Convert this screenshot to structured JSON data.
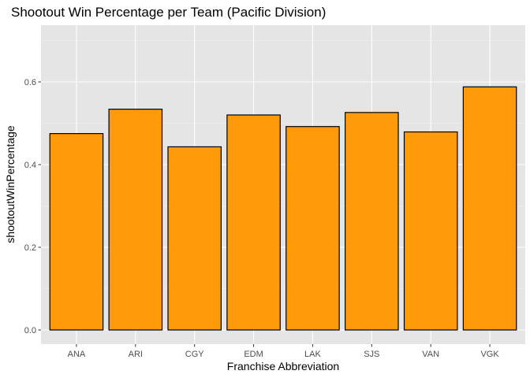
{
  "chart_data": {
    "type": "bar",
    "title": "Shootout Win Percentage per Team (Pacific Division)",
    "xlabel": "Franchise Abbreviation",
    "ylabel": "shootoutWinPercentage",
    "categories": [
      "ANA",
      "ARI",
      "CGY",
      "EDM",
      "LAK",
      "SJS",
      "VAN",
      "VGK"
    ],
    "values": [
      0.475,
      0.534,
      0.443,
      0.52,
      0.492,
      0.526,
      0.479,
      0.588
    ],
    "ylim": [
      0,
      0.74
    ],
    "yticks": [
      0.0,
      0.2,
      0.4,
      0.6
    ],
    "ytick_labels": [
      "0.0",
      "0.2",
      "0.4",
      "0.6"
    ],
    "grid": true,
    "bar_fill": "#FF9A0A",
    "bar_outline": "#000000",
    "panel_background": "#E5E5E5"
  }
}
